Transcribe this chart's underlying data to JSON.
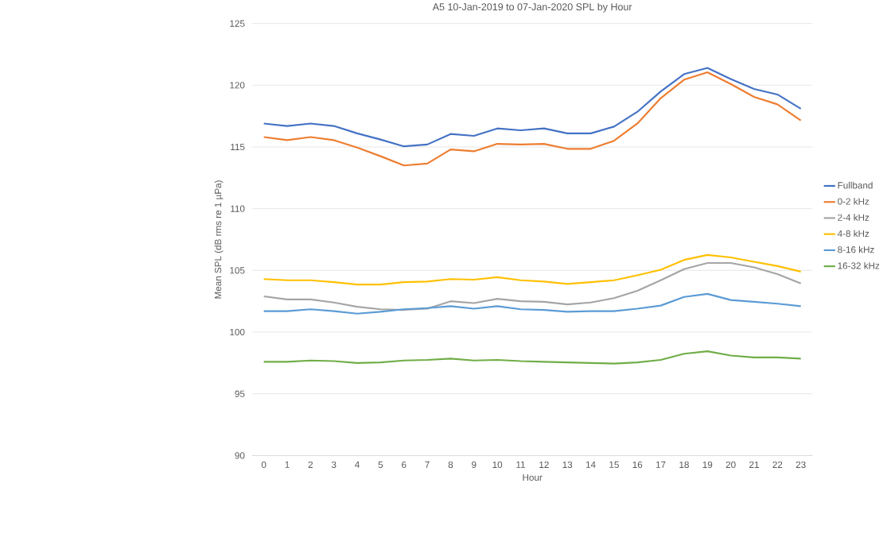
{
  "chart_data": {
    "type": "line",
    "title": "A5 10-Jan-2019 to 07-Jan-2020 SPL by Hour",
    "xlabel": "Hour",
    "ylabel": "Mean SPL (dB rms re 1 µPa)",
    "categories": [
      "0",
      "1",
      "2",
      "3",
      "4",
      "5",
      "6",
      "7",
      "8",
      "9",
      "10",
      "11",
      "12",
      "13",
      "14",
      "15",
      "16",
      "17",
      "18",
      "19",
      "20",
      "21",
      "22",
      "23"
    ],
    "ylim": [
      90,
      125
    ],
    "yticks": [
      90,
      95,
      100,
      105,
      110,
      115,
      120,
      125
    ],
    "grid": "y",
    "legend": "right",
    "series": [
      {
        "name": "Fullband",
        "color": "#4472c4",
        "values": [
          116.9,
          116.7,
          116.9,
          116.7,
          116.1,
          115.6,
          115.05,
          115.2,
          116.05,
          115.9,
          116.5,
          116.35,
          116.5,
          116.1,
          116.1,
          116.65,
          117.85,
          119.5,
          120.9,
          121.4,
          120.5,
          119.7,
          119.25,
          118.1
        ]
      },
      {
        "name": "0-2 kHz",
        "color": "#ed7d31",
        "values": [
          115.8,
          115.55,
          115.8,
          115.55,
          114.95,
          114.25,
          113.5,
          113.65,
          114.8,
          114.65,
          115.25,
          115.2,
          115.25,
          114.85,
          114.85,
          115.5,
          116.9,
          118.95,
          120.45,
          121.05,
          120.1,
          119.05,
          118.45,
          117.15
        ]
      },
      {
        "name": "2-4 kHz",
        "color": "#a5a5a5",
        "values": [
          102.9,
          102.65,
          102.65,
          102.4,
          102.05,
          101.85,
          101.8,
          101.9,
          102.5,
          102.35,
          102.7,
          102.5,
          102.45,
          102.25,
          102.4,
          102.75,
          103.35,
          104.2,
          105.1,
          105.6,
          105.6,
          105.25,
          104.7,
          103.95
        ]
      },
      {
        "name": "4-8 kHz",
        "color": "#ffc000",
        "values": [
          104.3,
          104.2,
          104.2,
          104.05,
          103.85,
          103.85,
          104.05,
          104.1,
          104.3,
          104.25,
          104.45,
          104.2,
          104.1,
          103.9,
          104.05,
          104.2,
          104.6,
          105.05,
          105.85,
          106.25,
          106.05,
          105.7,
          105.35,
          104.9
        ]
      },
      {
        "name": "8-16 kHz",
        "color": "#5b9bd5",
        "values": [
          101.7,
          101.7,
          101.85,
          101.7,
          101.5,
          101.65,
          101.85,
          101.95,
          102.1,
          101.9,
          102.1,
          101.85,
          101.8,
          101.65,
          101.7,
          101.7,
          101.9,
          102.15,
          102.85,
          103.1,
          102.6,
          102.45,
          102.3,
          102.1
        ]
      },
      {
        "name": "16-32 kHz",
        "color": "#70ad47",
        "values": [
          97.6,
          97.6,
          97.7,
          97.65,
          97.5,
          97.55,
          97.7,
          97.75,
          97.85,
          97.7,
          97.75,
          97.65,
          97.6,
          97.55,
          97.5,
          97.45,
          97.55,
          97.75,
          98.25,
          98.45,
          98.1,
          97.95,
          97.95,
          97.85
        ]
      }
    ]
  }
}
